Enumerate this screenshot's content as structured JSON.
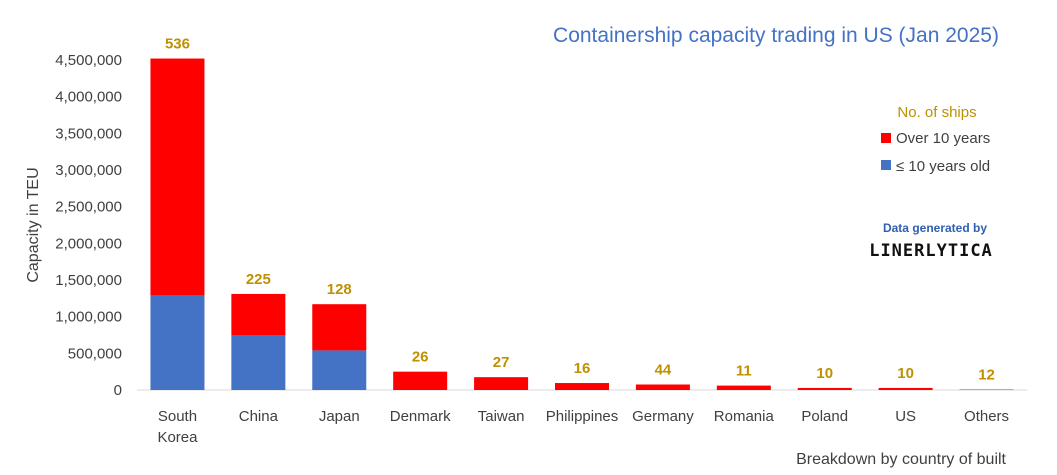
{
  "chart_data": {
    "type": "bar",
    "stacked": true,
    "title": "Containership capacity trading in US (Jan 2025)",
    "ylabel": "Capacity in TEU",
    "xlabel": "Breakdown by country of built",
    "ylim": [
      0,
      4500000
    ],
    "yticks": [
      0,
      500000,
      1000000,
      1500000,
      2000000,
      2500000,
      3000000,
      3500000,
      4000000,
      4500000
    ],
    "ytick_labels": [
      "0",
      "500,000",
      "1,000,000",
      "1,500,000",
      "2,000,000",
      "2,500,000",
      "3,000,000",
      "3,500,000",
      "4,000,000",
      "4,500,000"
    ],
    "categories": [
      "South Korea",
      "China",
      "Japan",
      "Denmark",
      "Taiwan",
      "Philippines",
      "Germany",
      "Romania",
      "Poland",
      "US",
      "Others"
    ],
    "category_lines": [
      [
        "South",
        "Korea"
      ],
      [
        "China"
      ],
      [
        "Japan"
      ],
      [
        "Denmark"
      ],
      [
        "Taiwan"
      ],
      [
        "Philippines"
      ],
      [
        "Germany"
      ],
      [
        "Romania"
      ],
      [
        "Poland"
      ],
      [
        "US"
      ],
      [
        "Others"
      ]
    ],
    "series": [
      {
        "name": "≤ 10 years old",
        "color": "#4472C4",
        "values": [
          1290000,
          750000,
          540000,
          0,
          0,
          0,
          0,
          0,
          0,
          0,
          0
        ]
      },
      {
        "name": "Over 10 years",
        "color": "#FF0000",
        "values": [
          3230000,
          560000,
          630000,
          250000,
          175000,
          95000,
          75000,
          60000,
          28000,
          28000,
          6000
        ]
      }
    ],
    "ship_counts": [
      "536",
      "225",
      "128",
      "26",
      "27",
      "16",
      "44",
      "11",
      "10",
      "10",
      "12"
    ],
    "legend": {
      "title": "No. of ships",
      "placement": "right",
      "items": [
        "Over 10 years",
        "≤ 10 years old"
      ]
    },
    "grid": false
  },
  "credit": {
    "line1": "Data generated by",
    "brand": "LINERLYTICA"
  }
}
